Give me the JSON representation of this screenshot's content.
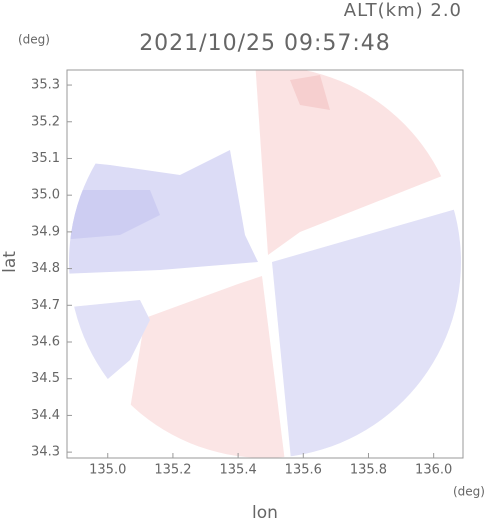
{
  "chart_data": {
    "type": "map",
    "title": "2021/10/25 09:57:48",
    "subtitle": "ALT(km) 2.0",
    "x_label": "lon",
    "y_label": "lat",
    "x_unit": "(deg)",
    "y_unit": "(deg)",
    "xlim": [
      134.875,
      136.09
    ],
    "ylim": [
      34.284,
      35.341
    ],
    "xticks": [
      {
        "value": 135,
        "label": "135.0"
      },
      135.2,
      135.4,
      135.6,
      135.8,
      {
        "value": 136,
        "label": "136.0"
      }
    ],
    "yticks": [
      {
        "value": 34.3,
        "label": "34.3"
      },
      34.4,
      34.5,
      34.6,
      34.7,
      34.8,
      34.9,
      {
        "value": 35,
        "label": "35.0"
      },
      35.1,
      35.2,
      35.3
    ]
  }
}
